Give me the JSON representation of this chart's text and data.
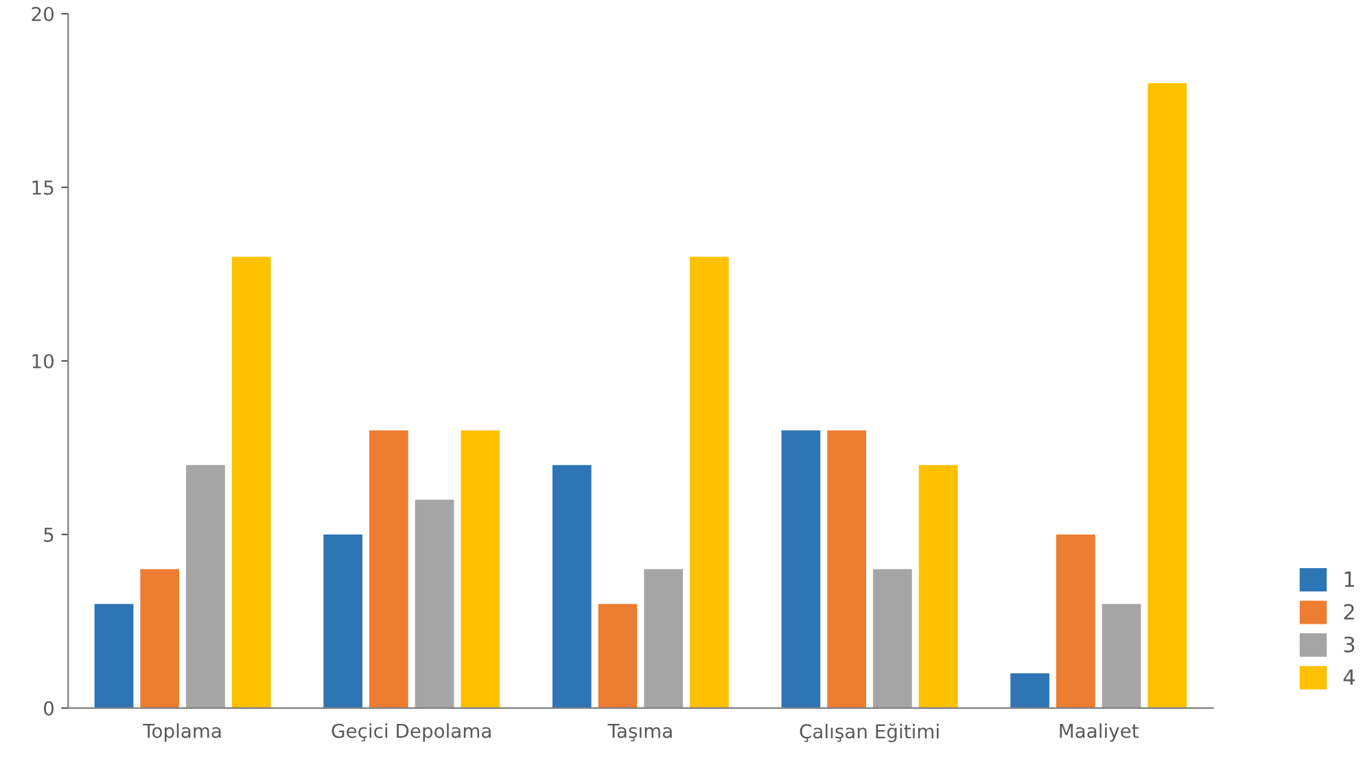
{
  "chart_data": {
    "type": "bar",
    "categories": [
      "Toplama",
      "Geçici Depolama",
      "Taşıma",
      "Çalışan Eğitimi",
      "Maaliyet"
    ],
    "series": [
      {
        "name": "1",
        "color": "#2e75b6",
        "values": [
          3,
          5,
          7,
          8,
          1
        ]
      },
      {
        "name": "2",
        "color": "#ed7d31",
        "values": [
          4,
          8,
          3,
          8,
          5
        ]
      },
      {
        "name": "3",
        "color": "#a5a5a5",
        "values": [
          7,
          6,
          4,
          4,
          3
        ]
      },
      {
        "name": "4",
        "color": "#ffc000",
        "values": [
          13,
          8,
          13,
          7,
          18
        ]
      }
    ],
    "ylim": [
      0,
      20
    ],
    "yticks": [
      0,
      5,
      10,
      15,
      20
    ],
    "grid": false,
    "legend": "bottom right"
  }
}
